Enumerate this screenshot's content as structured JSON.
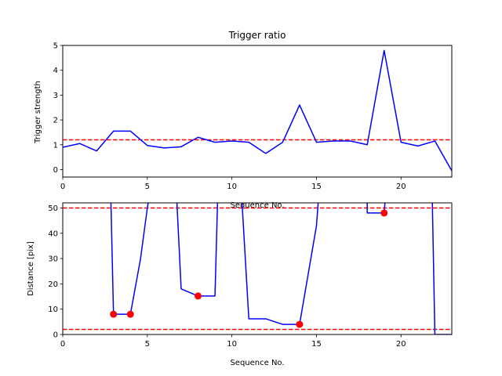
{
  "chart_data": [
    {
      "type": "line",
      "title": "Trigger ratio",
      "xlabel": "Sequence No.",
      "ylabel": "Trigger strength",
      "xlim": [
        0,
        23
      ],
      "ylim": [
        -0.3,
        5.0
      ],
      "xticks": [
        0,
        5,
        10,
        15,
        20
      ],
      "yticks": [
        0,
        1,
        2,
        3,
        4,
        5
      ],
      "grid": false,
      "series": [
        {
          "color": "#0000ff",
          "points": [
            [
              0,
              0.9
            ],
            [
              1,
              1.05
            ],
            [
              2,
              0.75
            ],
            [
              3,
              1.55
            ],
            [
              4,
              1.55
            ],
            [
              5,
              0.97
            ],
            [
              6,
              0.87
            ],
            [
              7,
              0.92
            ],
            [
              8,
              1.3
            ],
            [
              9,
              1.1
            ],
            [
              10,
              1.15
            ],
            [
              11,
              1.1
            ],
            [
              12,
              0.65
            ],
            [
              13,
              1.1
            ],
            [
              14,
              2.6
            ],
            [
              15,
              1.1
            ],
            [
              16,
              1.15
            ],
            [
              17,
              1.15
            ],
            [
              18,
              1.0
            ],
            [
              19,
              4.8
            ],
            [
              20,
              1.1
            ],
            [
              21,
              0.95
            ],
            [
              22,
              1.15
            ],
            [
              23,
              -0.05
            ]
          ]
        }
      ],
      "hlines": [
        {
          "y": 1.2,
          "color": "#ff0000",
          "style": "dashed"
        }
      ]
    },
    {
      "type": "line",
      "title": "",
      "xlabel": "Sequence No.",
      "ylabel": "Distance [pix]",
      "xlim": [
        0,
        23
      ],
      "ylim": [
        0,
        52
      ],
      "xticks": [
        0,
        5,
        10,
        15,
        20
      ],
      "yticks": [
        0,
        10,
        20,
        30,
        40,
        50
      ],
      "grid": false,
      "series": [
        {
          "color": "#0000ff",
          "segments": [
            [
              [
                2.85,
                52
              ],
              [
                3,
                8
              ],
              [
                4,
                8
              ],
              [
                4.6,
                30
              ],
              [
                5,
                50
              ],
              [
                5.05,
                52
              ]
            ],
            [
              [
                6.75,
                52
              ],
              [
                7,
                18
              ],
              [
                8,
                15.2
              ],
              [
                9,
                15.2
              ],
              [
                9.15,
                52
              ]
            ],
            [
              [
                10.6,
                52
              ],
              [
                11,
                6.2
              ],
              [
                12,
                6.2
              ],
              [
                13,
                4
              ],
              [
                14,
                4
              ],
              [
                15,
                43
              ],
              [
                15.1,
                52
              ]
            ],
            [
              [
                18,
                52
              ],
              [
                18,
                48
              ],
              [
                19,
                48
              ],
              [
                19.05,
                52
              ]
            ],
            [
              [
                21.85,
                52
              ],
              [
                22,
                0
              ],
              [
                23,
                0
              ]
            ]
          ]
        }
      ],
      "markers": {
        "color": "#ff0000",
        "points": [
          [
            3,
            8
          ],
          [
            4,
            8
          ],
          [
            8,
            15.2
          ],
          [
            14,
            4
          ],
          [
            19,
            48
          ]
        ]
      },
      "hlines": [
        {
          "y": 50,
          "color": "#ff0000",
          "style": "dashed"
        },
        {
          "y": 2,
          "color": "#ff0000",
          "style": "dashed"
        }
      ]
    }
  ]
}
